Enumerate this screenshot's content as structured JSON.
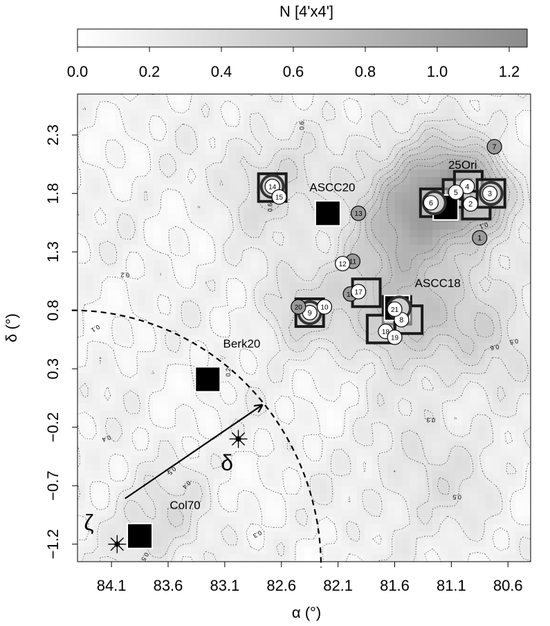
{
  "chart_data": {
    "type": "heatmap",
    "colorbar": {
      "title": "N [4'x4']",
      "min": 0.0,
      "max": 1.25,
      "ticks": [
        "0.0",
        "0.2",
        "0.4",
        "0.6",
        "0.8",
        "1.0",
        "1.2"
      ],
      "tick_values": [
        0.0,
        0.2,
        0.4,
        0.6,
        0.8,
        1.0,
        1.2
      ],
      "color_low": "#ffffff",
      "color_high": "#8c8c8c"
    },
    "xlabel": "α (°)",
    "ylabel": "δ (°)",
    "xlim": [
      84.4,
      80.4
    ],
    "ylim": [
      -1.35,
      2.65
    ],
    "x_ticks": [
      "84.1",
      "83.6",
      "83.1",
      "82.6",
      "82.1",
      "81.6",
      "81.1",
      "80.6"
    ],
    "x_tick_values": [
      84.1,
      83.6,
      83.1,
      82.6,
      82.1,
      81.6,
      81.1,
      80.6
    ],
    "y_ticks": [
      "−1.2",
      "−0.7",
      "−0.2",
      "0.3",
      "0.8",
      "1.3",
      "1.8",
      "2.3"
    ],
    "y_tick_values": [
      -1.2,
      -0.7,
      -0.2,
      0.3,
      0.8,
      1.3,
      1.8,
      2.3
    ],
    "density_peaks": [
      {
        "ra": 81.25,
        "dec": 1.75,
        "amp": 0.9,
        "sig": 0.35
      },
      {
        "ra": 80.9,
        "dec": 1.8,
        "amp": 0.55,
        "sig": 0.2
      },
      {
        "ra": 81.55,
        "dec": 0.75,
        "amp": 0.45,
        "sig": 0.3
      },
      {
        "ra": 82.45,
        "dec": 0.8,
        "amp": 0.3,
        "sig": 0.25
      },
      {
        "ra": 82.7,
        "dec": 1.9,
        "amp": 0.3,
        "sig": 0.3
      },
      {
        "ra": 81.7,
        "dec": 1.3,
        "amp": 0.3,
        "sig": 0.4
      },
      {
        "ra": 80.8,
        "dec": 0.6,
        "amp": 0.3,
        "sig": 0.35
      },
      {
        "ra": 83.7,
        "dec": -1.0,
        "amp": 0.25,
        "sig": 0.3
      },
      {
        "ra": 81.3,
        "dec": -0.6,
        "amp": 0.2,
        "sig": 0.4
      }
    ],
    "contour_labels": [
      {
        "text": "0.6",
        "ra": 82.4,
        "dec": 2.38,
        "rot": -90
      },
      {
        "text": "0.6",
        "ra": 82.68,
        "dec": 1.68,
        "rot": -90
      },
      {
        "text": "0.2",
        "ra": 83.98,
        "dec": 1.12,
        "rot": 180
      },
      {
        "text": "0.1",
        "ra": 84.25,
        "dec": 0.66,
        "rot": 150
      },
      {
        "text": "0.2",
        "ra": 83.05,
        "dec": 0.27,
        "rot": -90
      },
      {
        "text": "0.4",
        "ra": 84.15,
        "dec": -0.28,
        "rot": 160
      },
      {
        "text": "0.5",
        "ra": 83.58,
        "dec": -0.56,
        "rot": 135
      },
      {
        "text": "0.4",
        "ra": 83.45,
        "dec": -0.68,
        "rot": 135
      },
      {
        "text": "0.3",
        "ra": 82.82,
        "dec": -1.1,
        "rot": 150
      },
      {
        "text": "0.5",
        "ra": 83.82,
        "dec": -1.3,
        "rot": 120
      },
      {
        "text": "0.3",
        "ra": 81.28,
        "dec": -0.12,
        "rot": 180
      },
      {
        "text": "0.5",
        "ra": 81.05,
        "dec": -0.78,
        "rot": 180
      },
      {
        "text": "0.5",
        "ra": 80.55,
        "dec": 0.55,
        "rot": 170
      },
      {
        "text": "0.6",
        "ra": 80.72,
        "dec": 0.5,
        "rot": 170
      },
      {
        "text": "0.1",
        "ra": 80.82,
        "dec": 1.54,
        "rot": 160
      }
    ],
    "big_markers": [
      {
        "ra": 82.19,
        "dec": 1.63
      },
      {
        "ra": 83.25,
        "dec": 0.21
      },
      {
        "ra": 83.85,
        "dec": -1.13
      },
      {
        "ra": 81.15,
        "dec": 1.68
      },
      {
        "ra": 81.58,
        "dec": 0.82
      }
    ],
    "outlined_squares": [
      {
        "ra": 82.68,
        "dec": 1.85
      },
      {
        "ra": 82.35,
        "dec": 0.78
      },
      {
        "ra": 81.85,
        "dec": 0.95
      },
      {
        "ra": 81.58,
        "dec": 0.8
      },
      {
        "ra": 81.48,
        "dec": 0.72
      },
      {
        "ra": 81.72,
        "dec": 0.64
      },
      {
        "ra": 81.25,
        "dec": 1.72
      },
      {
        "ra": 81.05,
        "dec": 1.8
      },
      {
        "ra": 80.95,
        "dec": 1.87
      },
      {
        "ra": 80.88,
        "dec": 1.7
      },
      {
        "ra": 80.75,
        "dec": 1.8
      }
    ],
    "ringed_markers": [
      {
        "ra": 82.68,
        "dec": 1.86
      },
      {
        "ra": 82.35,
        "dec": 0.78
      },
      {
        "ra": 81.25,
        "dec": 1.72
      },
      {
        "ra": 81.56,
        "dec": 0.82
      },
      {
        "ra": 80.75,
        "dec": 1.8
      }
    ],
    "numbered_points": [
      {
        "label": "1",
        "ra": 80.85,
        "dec": 1.42,
        "fill": "#9a9a9a"
      },
      {
        "label": "2",
        "ra": 80.93,
        "dec": 1.71,
        "fill": "#ffffff"
      },
      {
        "label": "3",
        "ra": 80.76,
        "dec": 1.8,
        "fill": "#ffffff"
      },
      {
        "label": "4",
        "ra": 80.96,
        "dec": 1.86,
        "fill": "#ffffff"
      },
      {
        "label": "5",
        "ra": 81.06,
        "dec": 1.81,
        "fill": "#ffffff"
      },
      {
        "label": "6",
        "ra": 81.28,
        "dec": 1.72,
        "fill": "#ffffff"
      },
      {
        "label": "7",
        "ra": 80.72,
        "dec": 2.2,
        "fill": "#9a9a9a"
      },
      {
        "label": "8",
        "ra": 81.54,
        "dec": 0.72,
        "fill": "#ffffff"
      },
      {
        "label": "9",
        "ra": 82.35,
        "dec": 0.78,
        "fill": "#ffffff"
      },
      {
        "label": "10",
        "ra": 82.22,
        "dec": 0.83,
        "fill": "#ffffff"
      },
      {
        "label": "11",
        "ra": 81.97,
        "dec": 1.22,
        "fill": "#9a9a9a"
      },
      {
        "label": "12",
        "ra": 82.06,
        "dec": 1.2,
        "fill": "#ffffff"
      },
      {
        "label": "13",
        "ra": 81.92,
        "dec": 1.63,
        "fill": "#9a9a9a"
      },
      {
        "label": "14",
        "ra": 82.68,
        "dec": 1.86,
        "fill": "#ffffff"
      },
      {
        "label": "15",
        "ra": 82.62,
        "dec": 1.77,
        "fill": "#ffffff"
      },
      {
        "label": "16",
        "ra": 81.99,
        "dec": 0.94,
        "fill": "#9a9a9a"
      },
      {
        "label": "17",
        "ra": 81.92,
        "dec": 0.96,
        "fill": "#ffffff"
      },
      {
        "label": "18",
        "ra": 81.68,
        "dec": 0.62,
        "fill": "#ffffff"
      },
      {
        "label": "19",
        "ra": 81.6,
        "dec": 0.57,
        "fill": "#ffffff"
      },
      {
        "label": "20",
        "ra": 82.45,
        "dec": 0.83,
        "fill": "#9a9a9a"
      },
      {
        "label": "21",
        "ra": 81.6,
        "dec": 0.81,
        "fill": "#ffffff"
      }
    ],
    "cluster_labels": [
      {
        "text": "25Ori",
        "ra": 81.0,
        "dec": 2.01
      },
      {
        "text": "ASCC20",
        "ra": 82.15,
        "dec": 1.82
      },
      {
        "text": "ASCC18",
        "ra": 81.22,
        "dec": 1.0
      },
      {
        "text": "Berk20",
        "ra": 82.95,
        "dec": 0.48
      },
      {
        "text": "Col70",
        "ra": 83.45,
        "dec": -0.9
      }
    ],
    "stars": [
      {
        "label": "δ",
        "ra": 82.98,
        "dec": -0.3,
        "label_ra": 83.08,
        "label_dec": -0.57
      },
      {
        "label": "ζ",
        "ra": 84.05,
        "dec": -1.2,
        "label_ra": 84.3,
        "label_dec": -1.08
      }
    ],
    "arrow": {
      "from_ra": 83.98,
      "from_dec": -0.81,
      "to_ra": 82.77,
      "to_dec": -0.01
    },
    "arc": {
      "center_ra": 84.45,
      "center_dec": -1.4,
      "radius_deg": 2.2
    }
  }
}
